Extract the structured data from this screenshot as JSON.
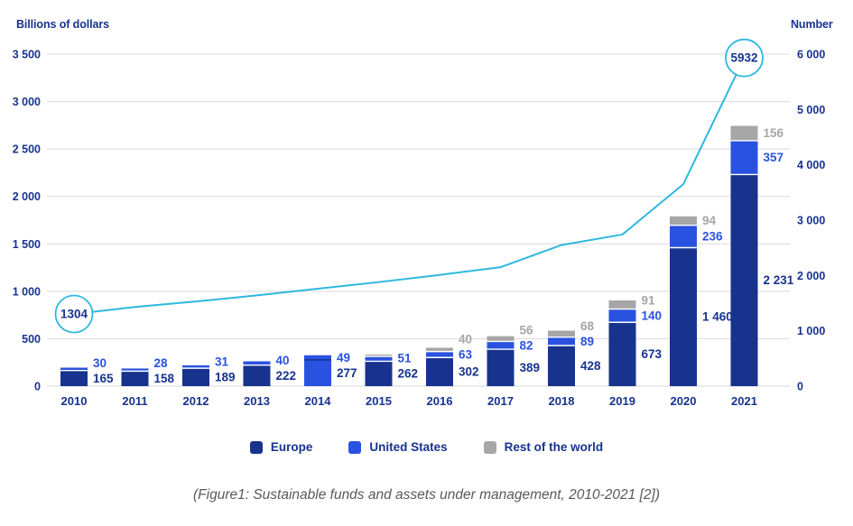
{
  "legend": [
    {
      "label": "Europe",
      "color": "#17338E"
    },
    {
      "label": "United States",
      "color": "#2A52E0"
    },
    {
      "label": "Rest of the world",
      "color": "#A6A6A6"
    }
  ],
  "caption": "(Figure1: Sustainable funds and assets under management, 2010-2021 [2])",
  "colors": {
    "europe": "#17338E",
    "united_states": "#2A52E0",
    "rest_of_world": "#A6A6A6",
    "line": "#2EB8DF",
    "grid": "#D9D9D9",
    "axis_text": "#17338E",
    "segment_divider": "#FFFFFF",
    "caption_text": "#595959"
  },
  "chart_data": {
    "type": "bar",
    "subtype": "stacked-bars-with-line-overlay",
    "categories": [
      "2010",
      "2011",
      "2012",
      "2013",
      "2014",
      "2015",
      "2016",
      "2017",
      "2018",
      "2019",
      "2020",
      "2021"
    ],
    "series": [
      {
        "name": "Europe",
        "axis": "left",
        "values": [
          165,
          158,
          189,
          222,
          277,
          262,
          302,
          389,
          428,
          673,
          1460,
          2231
        ],
        "labels": [
          "165",
          "158",
          "189",
          "222",
          "277",
          "262",
          "302",
          "389",
          "428",
          "673",
          "1 460",
          "2 231"
        ]
      },
      {
        "name": "United States",
        "axis": "left",
        "values": [
          30,
          28,
          31,
          40,
          49,
          51,
          63,
          82,
          89,
          140,
          236,
          357
        ],
        "labels": [
          "30",
          "28",
          "31",
          "40",
          "49",
          "51",
          "63",
          "82",
          "89",
          "140",
          "236",
          "357"
        ]
      },
      {
        "name": "Rest of the world",
        "axis": "left",
        "values": [
          0,
          0,
          0,
          0,
          0,
          20,
          40,
          56,
          68,
          91,
          94,
          156
        ],
        "labels": [
          "",
          "",
          "",
          "",
          "",
          "",
          "40",
          "56",
          "68",
          "91",
          "94",
          "156"
        ]
      }
    ],
    "line": {
      "name": "Number of funds",
      "axis": "right",
      "values": [
        1304,
        1430,
        1530,
        1640,
        1760,
        1880,
        2010,
        2150,
        2550,
        2740,
        3650,
        5932
      ],
      "labeled_points": [
        {
          "category": "2010",
          "index": 0,
          "label": "1304"
        },
        {
          "category": "2021",
          "index": 11,
          "label": "5932"
        }
      ],
      "note": "only endpoints 1304 and 5932 are labeled in the figure; intermediate values estimated from gridlines"
    },
    "bar_anomaly": {
      "category": "2014",
      "index": 4,
      "europe_segment_color": "#2A52E0",
      "divider_color": "#17338E"
    },
    "left_axis": {
      "title": "Billions of dollars",
      "ticks": [
        "0",
        "500",
        "1 000",
        "1 500",
        "2 000",
        "2 500",
        "3 000",
        "3 500"
      ],
      "min": 0,
      "max": 3500,
      "tick_step": 500
    },
    "right_axis": {
      "title": "Number",
      "ticks": [
        "0",
        "1 000",
        "2 000",
        "3 000",
        "4 000",
        "5 000",
        "6 000"
      ],
      "min": 0,
      "max": 6000,
      "tick_step": 1000
    },
    "grid": "horizontal",
    "legend_position": "bottom"
  }
}
